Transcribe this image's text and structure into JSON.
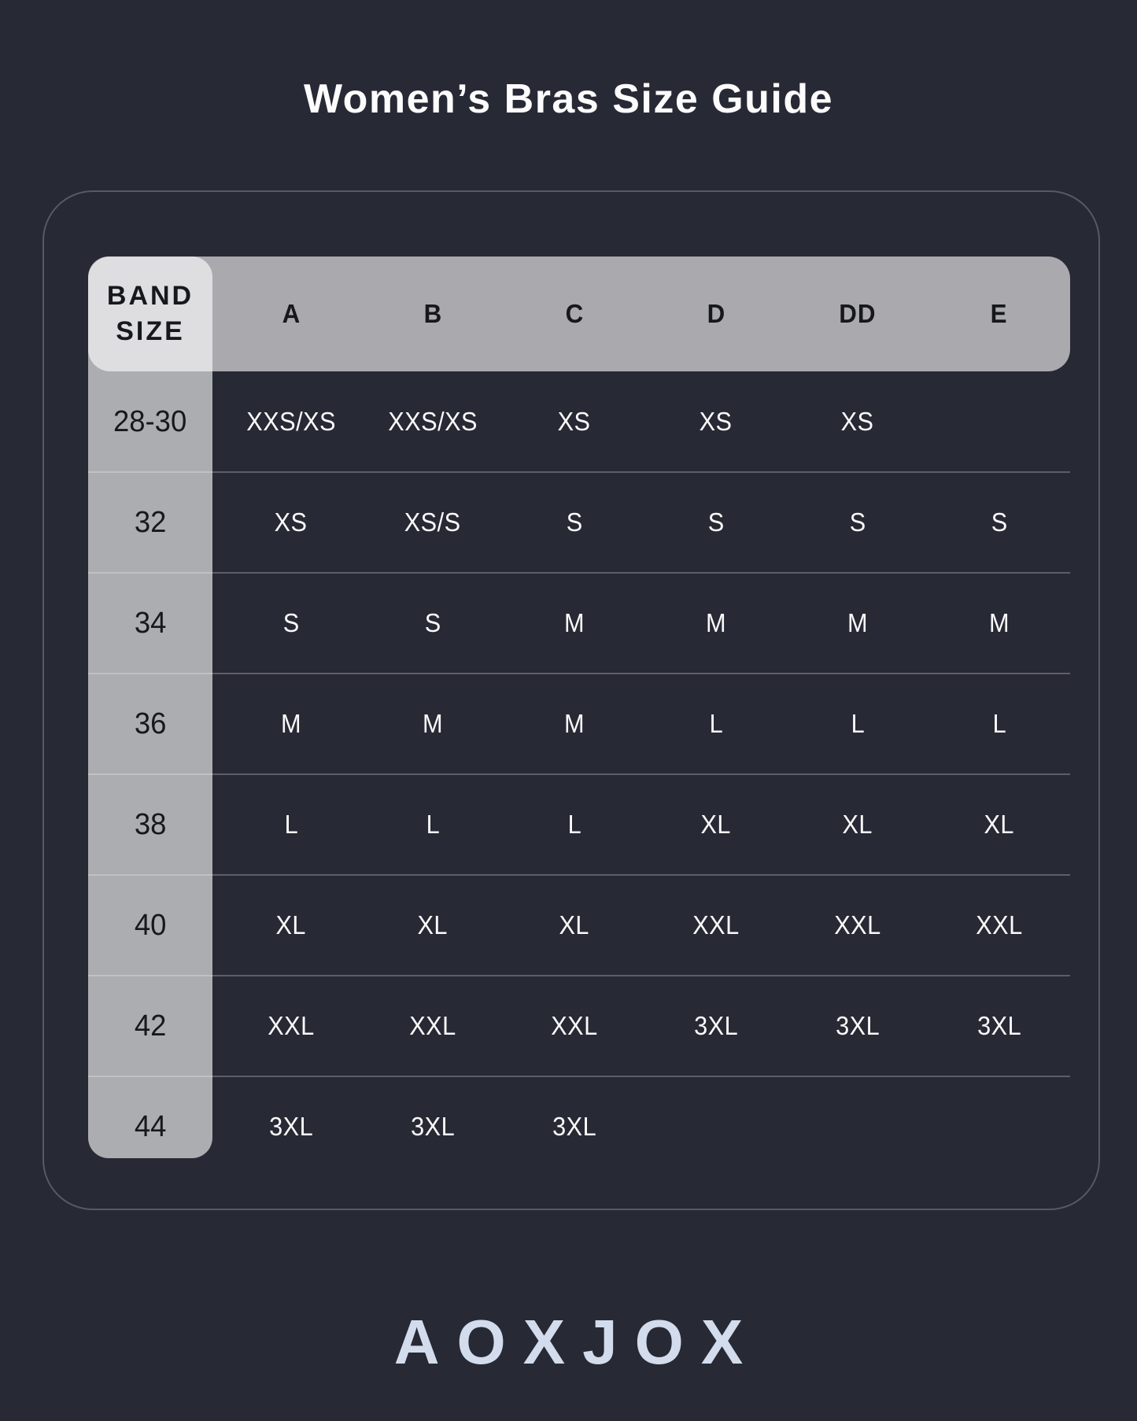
{
  "title": "Women’s Bras Size Guide",
  "table": {
    "corner_header": {
      "line1": "BAND",
      "line2": "SIZE"
    },
    "cup_headers": [
      "A",
      "B",
      "C",
      "D",
      "DD",
      "E"
    ],
    "rows": [
      {
        "band": "28-30",
        "cells": [
          "XXS/XS",
          "XXS/XS",
          "XS",
          "XS",
          "XS",
          ""
        ]
      },
      {
        "band": "32",
        "cells": [
          "XS",
          "XS/S",
          "S",
          "S",
          "S",
          "S"
        ]
      },
      {
        "band": "34",
        "cells": [
          "S",
          "S",
          "M",
          "M",
          "M",
          "M"
        ]
      },
      {
        "band": "36",
        "cells": [
          "M",
          "M",
          "M",
          "L",
          "L",
          "L"
        ]
      },
      {
        "band": "38",
        "cells": [
          "L",
          "L",
          "L",
          "XL",
          "XL",
          "XL"
        ]
      },
      {
        "band": "40",
        "cells": [
          "XL",
          "XL",
          "XL",
          "XXL",
          "XXL",
          "XXL"
        ]
      },
      {
        "band": "42",
        "cells": [
          "XXL",
          "XXL",
          "XXL",
          "3XL",
          "3XL",
          "3XL"
        ]
      },
      {
        "band": "44",
        "cells": [
          "3XL",
          "3XL",
          "3XL",
          "",
          "",
          ""
        ]
      }
    ]
  },
  "brand": {
    "logo_text": "AOXJOX"
  },
  "colors": {
    "background": "#272934",
    "header_band": "#a9a9ae",
    "band_column_overlay": "rgba(255,255,255,0.62)",
    "card_border": "#565a65",
    "divider": "rgba(255,255,255,0.25)",
    "title_text": "#fcfcfd",
    "header_text": "#17181d",
    "cell_text": "#fafafa",
    "logo_text": "#d3dcec"
  }
}
